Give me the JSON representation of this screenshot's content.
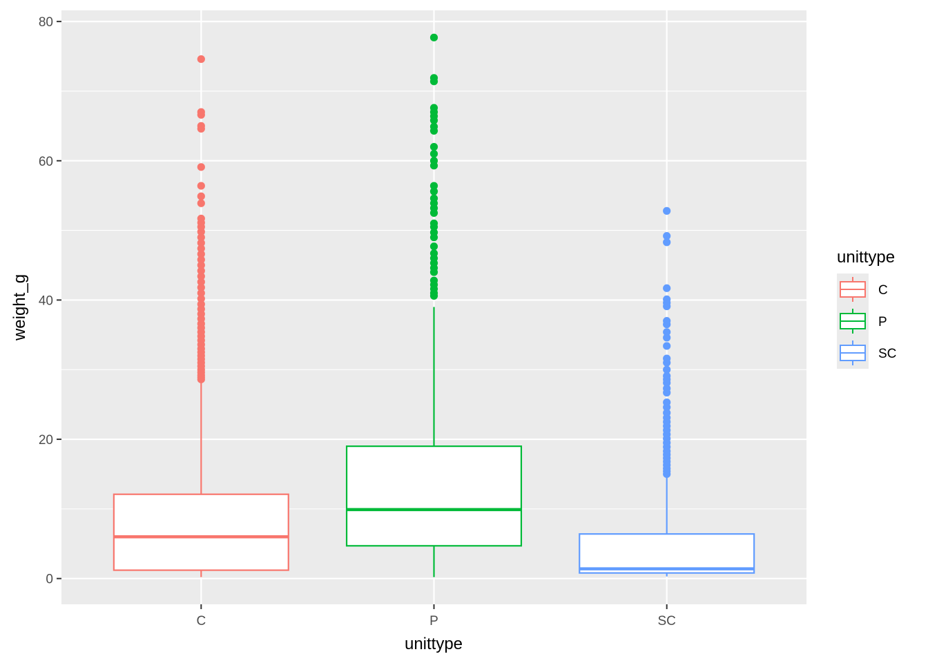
{
  "chart_data": {
    "type": "boxplot",
    "xlabel": "unittype",
    "ylabel": "weight_g",
    "categories": [
      "C",
      "P",
      "SC"
    ],
    "ylim": [
      -3.7,
      81.6
    ],
    "yticks": [
      0,
      20,
      40,
      60,
      80
    ],
    "grid": true,
    "legend": {
      "title": "unittype",
      "position": "right",
      "entries": [
        "C",
        "P",
        "SC"
      ]
    },
    "colors": {
      "C": "#F8766D",
      "P": "#00BA38",
      "SC": "#619CFF",
      "panel": "#EBEBEB",
      "grid": "#FFFFFF"
    },
    "boxes": [
      {
        "category": "C",
        "whisker_low": 0.2,
        "q1": 1.2,
        "median": 6.0,
        "q3": 12.1,
        "whisker_high": 28.2,
        "outliers": [
          28.6,
          28.9,
          29.2,
          29.6,
          30.0,
          30.5,
          31.0,
          31.5,
          32.0,
          32.5,
          33.0,
          33.6,
          34.2,
          34.8,
          35.4,
          36.0,
          36.6,
          37.3,
          38.0,
          38.7,
          39.4,
          40.2,
          41.0,
          41.8,
          42.6,
          43.4,
          44.2,
          45.0,
          45.8,
          46.6,
          47.4,
          48.2,
          49.0,
          49.8,
          50.5,
          51.1,
          51.7,
          53.9,
          54.9,
          56.4,
          59.1,
          64.6,
          65.0,
          66.6,
          67.0,
          74.6
        ]
      },
      {
        "category": "P",
        "whisker_low": 0.2,
        "q1": 4.7,
        "median": 9.9,
        "q3": 19.0,
        "whisker_high": 39.0,
        "outliers": [
          40.6,
          41.0,
          41.6,
          42.2,
          42.8,
          44.0,
          44.6,
          45.3,
          46.0,
          46.7,
          47.7,
          49.0,
          49.7,
          50.5,
          51.0,
          52.5,
          53.2,
          53.9,
          54.6,
          55.6,
          56.4,
          59.3,
          60.0,
          61.0,
          62.0,
          64.3,
          64.9,
          65.8,
          66.4,
          67.0,
          67.6,
          71.4,
          71.9,
          77.7
        ]
      },
      {
        "category": "SC",
        "whisker_low": 0.3,
        "q1": 0.8,
        "median": 1.4,
        "q3": 6.4,
        "whisker_high": 14.9,
        "outliers": [
          15.0,
          15.4,
          15.8,
          16.3,
          16.8,
          17.3,
          17.8,
          18.3,
          18.9,
          19.5,
          20.1,
          20.7,
          21.3,
          21.9,
          22.5,
          23.1,
          23.8,
          24.6,
          25.3,
          26.7,
          27.3,
          28.1,
          28.6,
          29.1,
          30.0,
          31.0,
          31.6,
          33.4,
          34.6,
          35.4,
          36.5,
          37.0,
          39.1,
          39.6,
          40.1,
          41.7,
          48.3,
          49.2,
          52.8
        ]
      }
    ]
  }
}
